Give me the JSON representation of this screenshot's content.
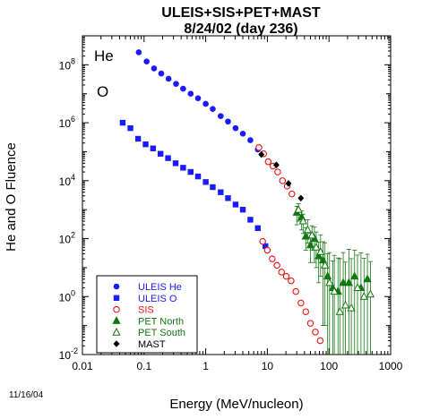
{
  "chart_data": {
    "type": "scatter",
    "title": "ULEIS+SIS+PET+MAST",
    "subtitle": "8/24/02 (day 236)",
    "xlabel": "Energy (MeV/nucleon)",
    "ylabel": "He and O Fluence",
    "x_scale": "log",
    "y_scale": "log",
    "xlim": [
      0.01,
      1000
    ],
    "ylim": [
      0.01,
      1000000000
    ],
    "x_ticks": [
      {
        "value": 0.01,
        "label": "0.01"
      },
      {
        "value": 0.1,
        "label": "0.1"
      },
      {
        "value": 1,
        "label": "1"
      },
      {
        "value": 10,
        "label": "10"
      },
      {
        "value": 100,
        "label": "100"
      },
      {
        "value": 1000,
        "label": "1000"
      }
    ],
    "y_ticks": [
      {
        "value": 0.01,
        "base": "10",
        "exp": "-2"
      },
      {
        "value": 1,
        "base": "10",
        "exp": "0"
      },
      {
        "value": 100,
        "base": "10",
        "exp": "2"
      },
      {
        "value": 10000,
        "base": "10",
        "exp": "4"
      },
      {
        "value": 1000000,
        "base": "10",
        "exp": "6"
      },
      {
        "value": 100000000,
        "base": "10",
        "exp": "8"
      }
    ],
    "grid": false,
    "legend_position": "bottom-left",
    "annotations": [
      {
        "text": "He",
        "x": 0.1,
        "y": 240000000
      },
      {
        "text": "O",
        "x": 0.1,
        "y": 4000000
      }
    ],
    "footnote": "11/16/04",
    "series": [
      {
        "name": "ULEIS He",
        "marker": "circle-filled",
        "color": "#1a1aff",
        "x": [
          0.082,
          0.11,
          0.145,
          0.19,
          0.25,
          0.33,
          0.43,
          0.57,
          0.75,
          1.0,
          1.3,
          1.75,
          2.3,
          3.05,
          4.0,
          5.3,
          7.0
        ],
        "y": [
          270000000,
          130000000,
          75000000,
          50000000,
          33000000,
          22000000,
          15000000,
          10000000,
          7000000,
          4500000,
          3000000,
          1700000,
          1100000,
          650000,
          420000,
          250000,
          120000
        ]
      },
      {
        "name": "ULEIS O",
        "marker": "square-filled",
        "color": "#1a1aff",
        "x": [
          0.045,
          0.06,
          0.08,
          0.106,
          0.14,
          0.185,
          0.245,
          0.325,
          0.43,
          0.57,
          0.75,
          1.0,
          1.3,
          1.75,
          2.3,
          3.05,
          4.0,
          5.3,
          7.0,
          9.3
        ],
        "y": [
          1000000,
          650000,
          280000,
          180000,
          130000,
          85000,
          60000,
          40000,
          28000,
          20000,
          14000,
          9000,
          6000,
          4000,
          2500,
          1500,
          1000,
          450,
          230,
          55
        ]
      },
      {
        "name": "SIS",
        "marker": "circle-open",
        "color": "#ee1111",
        "x": [
          7.3,
          8.7,
          10.3,
          12.3,
          14.7,
          17.6,
          21.0,
          25.0,
          8.4,
          10.0,
          12.0,
          14.3,
          17.0,
          20.3,
          24.3,
          29.0,
          35.0,
          42.0,
          50.0,
          60.0,
          72.0
        ],
        "y": [
          140000,
          85000,
          45000,
          32000,
          20000,
          10000,
          6500,
          3500,
          80,
          40,
          20,
          12,
          7,
          5,
          3.5,
          1.5,
          0.6,
          0.3,
          0.12,
          0.06,
          0.03
        ]
      },
      {
        "name": "PET North",
        "marker": "triangle-filled",
        "color": "#117711",
        "x": [
          30,
          36,
          42,
          50,
          58,
          68,
          80,
          95,
          115,
          140,
          170,
          210,
          260,
          330,
          420
        ],
        "y": [
          800,
          550,
          120,
          60,
          100,
          25,
          18,
          5,
          2,
          1.5,
          3,
          3,
          5,
          2,
          4
        ],
        "err_low": [
          500,
          350,
          80,
          45,
          85,
          22,
          17.9,
          4.99,
          1.999,
          1.499,
          2.999,
          2.999,
          4.999,
          1.999,
          3.999
        ],
        "err_high": [
          500,
          350,
          120,
          90,
          150,
          50,
          60,
          25,
          15,
          20,
          30,
          40,
          35,
          30,
          25
        ]
      },
      {
        "name": "PET South",
        "marker": "triangle-open",
        "color": "#117711",
        "x": [
          32,
          38,
          45,
          53,
          62,
          73,
          86,
          102,
          122,
          150,
          185,
          230,
          290,
          370,
          470
        ],
        "y": [
          1000,
          400,
          200,
          130,
          50,
          35,
          12,
          3,
          1.5,
          0.3,
          0.5,
          0.4,
          2,
          1,
          1.2
        ],
        "err_low": [
          600,
          250,
          130,
          90,
          40,
          30,
          11.9,
          2.99,
          1.499,
          0.299,
          0.499,
          0.399,
          1.999,
          0.999,
          1.199
        ],
        "err_high": [
          600,
          300,
          250,
          150,
          120,
          100,
          60,
          30,
          25,
          20,
          15,
          20,
          25,
          20,
          15
        ]
      },
      {
        "name": "MAST",
        "marker": "diamond-filled",
        "color": "#000000",
        "x": [
          8.0,
          14.0,
          22.0,
          35.0
        ],
        "y": [
          80000,
          35000,
          8000,
          2500
        ]
      }
    ]
  }
}
